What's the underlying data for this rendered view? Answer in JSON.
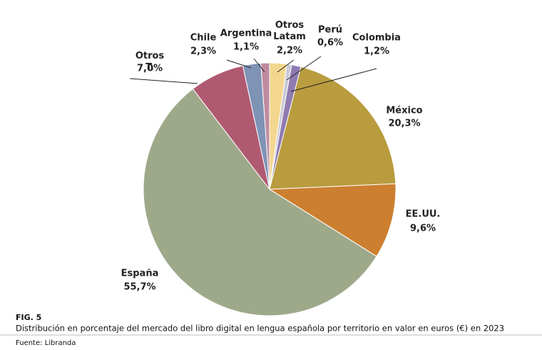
{
  "chart_data": {
    "type": "pie",
    "categories": [
      "Otros Latam",
      "Perú",
      "Colombia",
      "México",
      "EE.UU.",
      "España",
      "Otros T.",
      "Chile",
      "Argentina"
    ],
    "values": [
      2.2,
      0.6,
      1.2,
      20.3,
      9.6,
      55.7,
      7.0,
      2.3,
      1.1
    ],
    "value_labels": [
      "2,2%",
      "0,6%",
      "1,2%",
      "20,3%",
      "9,6%",
      "55,7%",
      "7,0%",
      "2,3%",
      "1,1%"
    ],
    "colors": [
      "#f3d78e",
      "#c9cad8",
      "#8f7bb0",
      "#b99c3e",
      "#cc7f2f",
      "#9ea98a",
      "#b05a72",
      "#7f93b5",
      "#c08ba0"
    ],
    "figure": "FIG. 5",
    "caption": "Distribución en porcentaje del mercado del libro digital en lengua española por territorio en valor en euros (€) en 2023",
    "source": "Fuente: Libranda"
  }
}
